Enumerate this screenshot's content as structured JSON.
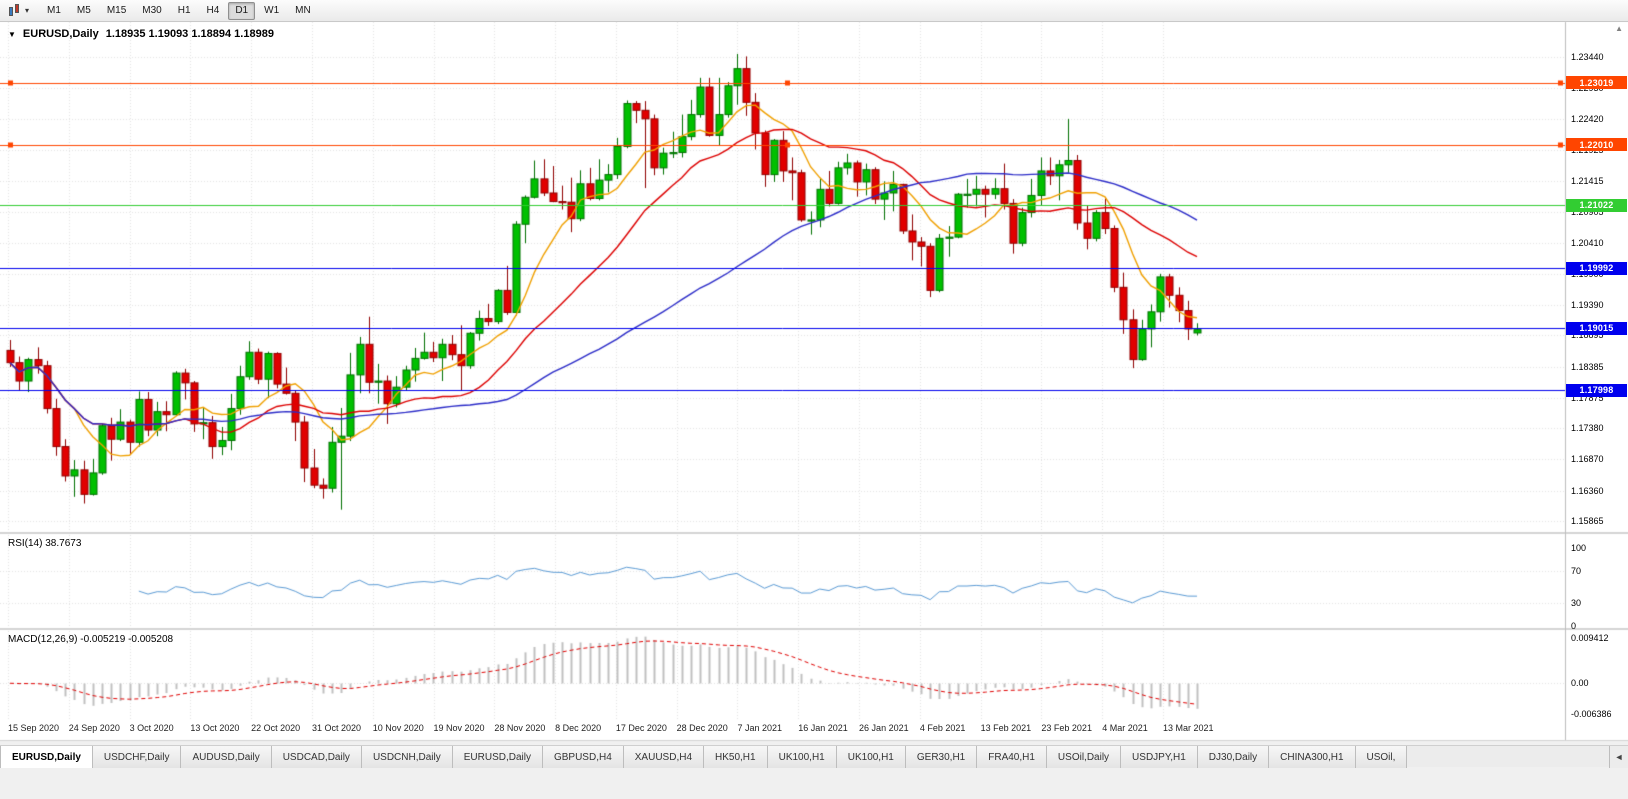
{
  "toolbar": {
    "timeframes": [
      "M1",
      "M5",
      "M15",
      "M30",
      "H1",
      "H4",
      "D1",
      "W1",
      "MN"
    ],
    "active_timeframe": "D1"
  },
  "header": {
    "collapse_icon": "▼",
    "symbol": "EURUSD,Daily",
    "ohlc": "1.18935 1.19093 1.18894 1.18989"
  },
  "rsi_pane": {
    "label": "RSI(14) 38.7673",
    "axis_labels": [
      "100",
      "70",
      "30",
      "0"
    ]
  },
  "macd_pane": {
    "label": "MACD(12,26,9) -0.005219 -0.005208",
    "axis_labels": [
      "0.009412",
      "0.00",
      "-0.006386"
    ]
  },
  "axis_scroll_icon": "▲",
  "tabs": {
    "active_index": 0,
    "scroll_icon": "◄",
    "items": [
      "EURUSD,Daily",
      "USDCHF,Daily",
      "AUDUSD,Daily",
      "USDCAD,Daily",
      "USDCNH,Daily",
      "EURUSD,Daily",
      "GBPUSD,H4",
      "XAUUSD,H4",
      "HK50,H1",
      "UK100,H1",
      "UK100,H1",
      "GER30,H1",
      "FRA40,H1",
      "USOil,Daily",
      "USDJPY,H1",
      "DJ30,Daily",
      "CHINA300,H1",
      "USOil,"
    ]
  },
  "chart_data": {
    "type": "candlestick",
    "symbol": "EURUSD",
    "timeframe": "Daily",
    "price_axis_labels": [
      "1.23440",
      "1.22930",
      "1.22420",
      "1.21925",
      "1.21415",
      "1.20905",
      "1.20410",
      "1.19900",
      "1.19390",
      "1.18895",
      "1.18385",
      "1.17875",
      "1.17380",
      "1.16870",
      "1.16360",
      "1.15865"
    ],
    "x_dates": [
      "15 Sep 2020",
      "24 Sep 2020",
      "3 Oct 2020",
      "13 Oct 2020",
      "22 Oct 2020",
      "31 Oct 2020",
      "10 Nov 2020",
      "19 Nov 2020",
      "28 Nov 2020",
      "8 Dec 2020",
      "17 Dec 2020",
      "28 Dec 2020",
      "7 Jan 2021",
      "16 Jan 2021",
      "26 Jan 2021",
      "4 Feb 2021",
      "13 Feb 2021",
      "23 Feb 2021",
      "4 Mar 2021",
      "13 Mar 2021"
    ],
    "levels": [
      {
        "label": "1.23019",
        "price": 1.23019,
        "color": "#ff4500",
        "selected": true
      },
      {
        "label": "1.22010",
        "price": 1.2201,
        "color": "#ff4500",
        "selected": true
      },
      {
        "label": "1.21022",
        "price": 1.21022,
        "color": "#32cd32",
        "selected": false
      },
      {
        "label": "1.19992",
        "price": 1.19992,
        "color": "#0000ee",
        "selected": false
      },
      {
        "label": "1.19015",
        "price": 1.19015,
        "color": "#0000ee",
        "selected": false
      },
      {
        "label": "1.17998",
        "price": 1.17998,
        "color": "#0000ee",
        "selected": false
      }
    ],
    "colors": {
      "bull": "#00c000",
      "bear": "#e10000",
      "bull_border": "#007000",
      "bear_border": "#900000"
    },
    "indicators": {
      "moving_averages": [
        {
          "type": "sma",
          "period": 8,
          "color": "#f0a000"
        },
        {
          "type": "sma",
          "period": 20,
          "color": "#dd0000"
        },
        {
          "type": "sma",
          "period": 50,
          "color": "#2b2bc8"
        }
      ],
      "rsi": {
        "period": 14,
        "current": 38.7673,
        "scale_max": 100,
        "scale_min": 0,
        "levels": [
          70,
          30
        ],
        "color": "#5b9bd5"
      },
      "macd": {
        "fast": 12,
        "slow": 26,
        "signal_period": 9,
        "current_macd": -0.005219,
        "current_signal": -0.005208,
        "axis_max": 0.009412,
        "axis_min": -0.006386,
        "hist_color": "#c0c0c0",
        "signal_color": "#e00000"
      }
    },
    "candles": [
      [
        1.1865,
        1.1882,
        1.1838,
        1.1845
      ],
      [
        1.1845,
        1.1855,
        1.18,
        1.1815
      ],
      [
        1.1815,
        1.1853,
        1.1797,
        1.185
      ],
      [
        1.185,
        1.187,
        1.1827,
        1.184
      ],
      [
        1.184,
        1.1848,
        1.1762,
        1.177
      ],
      [
        1.177,
        1.1786,
        1.1693,
        1.1708
      ],
      [
        1.1708,
        1.172,
        1.1651,
        1.166
      ],
      [
        1.166,
        1.1686,
        1.1626,
        1.167
      ],
      [
        1.167,
        1.1685,
        1.1615,
        1.163
      ],
      [
        1.163,
        1.1688,
        1.1628,
        1.1665
      ],
      [
        1.1665,
        1.1745,
        1.1662,
        1.1742
      ],
      [
        1.1742,
        1.1755,
        1.1685,
        1.172
      ],
      [
        1.172,
        1.1769,
        1.1717,
        1.1748
      ],
      [
        1.1748,
        1.1752,
        1.1695,
        1.1715
      ],
      [
        1.1715,
        1.1798,
        1.1708,
        1.1785
      ],
      [
        1.1785,
        1.1797,
        1.1725,
        1.1735
      ],
      [
        1.1735,
        1.1781,
        1.1725,
        1.1765
      ],
      [
        1.1765,
        1.1782,
        1.1733,
        1.176
      ],
      [
        1.176,
        1.1831,
        1.1758,
        1.1828
      ],
      [
        1.1828,
        1.1835,
        1.1785,
        1.1812
      ],
      [
        1.1812,
        1.1815,
        1.1732,
        1.1745
      ],
      [
        1.1745,
        1.1772,
        1.172,
        1.1747
      ],
      [
        1.1747,
        1.1758,
        1.1688,
        1.1708
      ],
      [
        1.1708,
        1.174,
        1.1694,
        1.1718
      ],
      [
        1.1718,
        1.1794,
        1.1702,
        1.177
      ],
      [
        1.177,
        1.184,
        1.176,
        1.1822
      ],
      [
        1.1822,
        1.188,
        1.1817,
        1.1862
      ],
      [
        1.1862,
        1.1868,
        1.181,
        1.1818
      ],
      [
        1.1818,
        1.1863,
        1.1787,
        1.186
      ],
      [
        1.186,
        1.1862,
        1.1803,
        1.181
      ],
      [
        1.181,
        1.1837,
        1.1793,
        1.1795
      ],
      [
        1.1795,
        1.18,
        1.1717,
        1.1748
      ],
      [
        1.1748,
        1.1758,
        1.165,
        1.1673
      ],
      [
        1.1673,
        1.1704,
        1.164,
        1.1645
      ],
      [
        1.1645,
        1.1656,
        1.1623,
        1.164
      ],
      [
        1.164,
        1.174,
        1.1633,
        1.1715
      ],
      [
        1.1715,
        1.1771,
        1.1605,
        1.1725
      ],
      [
        1.1725,
        1.1861,
        1.1717,
        1.1825
      ],
      [
        1.1825,
        1.1887,
        1.1795,
        1.1875
      ],
      [
        1.1875,
        1.192,
        1.1795,
        1.1813
      ],
      [
        1.1813,
        1.1843,
        1.1778,
        1.1815
      ],
      [
        1.1815,
        1.1824,
        1.1745,
        1.1778
      ],
      [
        1.1778,
        1.1823,
        1.1772,
        1.1805
      ],
      [
        1.1805,
        1.184,
        1.1799,
        1.1833
      ],
      [
        1.1833,
        1.1869,
        1.1814,
        1.1852
      ],
      [
        1.1852,
        1.1894,
        1.185,
        1.1862
      ],
      [
        1.1862,
        1.1879,
        1.1846,
        1.1853
      ],
      [
        1.1853,
        1.1884,
        1.1815,
        1.1875
      ],
      [
        1.1875,
        1.189,
        1.1849,
        1.1858
      ],
      [
        1.1858,
        1.1906,
        1.18,
        1.184
      ],
      [
        1.184,
        1.1895,
        1.1835,
        1.1893
      ],
      [
        1.1893,
        1.193,
        1.1881,
        1.1917
      ],
      [
        1.1917,
        1.1941,
        1.1905,
        1.1912
      ],
      [
        1.1912,
        1.1965,
        1.1908,
        1.1963
      ],
      [
        1.1963,
        1.2003,
        1.1923,
        1.1927
      ],
      [
        1.1927,
        1.2076,
        1.1922,
        1.2071
      ],
      [
        1.2071,
        1.2118,
        1.204,
        1.2115
      ],
      [
        1.2115,
        1.2175,
        1.2113,
        1.2145
      ],
      [
        1.2145,
        1.2177,
        1.2117,
        1.2122
      ],
      [
        1.2122,
        1.2166,
        1.2107,
        1.2108
      ],
      [
        1.2108,
        1.2134,
        1.2095,
        1.2107
      ],
      [
        1.2107,
        1.2147,
        1.2058,
        1.208
      ],
      [
        1.208,
        1.2159,
        1.2076,
        1.2137
      ],
      [
        1.2137,
        1.2163,
        1.211,
        1.2113
      ],
      [
        1.2113,
        1.2177,
        1.211,
        1.2143
      ],
      [
        1.2143,
        1.2169,
        1.2123,
        1.2152
      ],
      [
        1.2152,
        1.2212,
        1.2145,
        1.2198
      ],
      [
        1.2198,
        1.2273,
        1.2195,
        1.2268
      ],
      [
        1.2268,
        1.2272,
        1.2236,
        1.2257
      ],
      [
        1.2257,
        1.2272,
        1.213,
        1.2243
      ],
      [
        1.2243,
        1.225,
        1.2151,
        1.2163
      ],
      [
        1.2163,
        1.2196,
        1.2152,
        1.2187
      ],
      [
        1.2187,
        1.2222,
        1.2179,
        1.2188
      ],
      [
        1.2188,
        1.225,
        1.218,
        1.2214
      ],
      [
        1.2214,
        1.2274,
        1.2208,
        1.225
      ],
      [
        1.225,
        1.231,
        1.2245,
        1.2295
      ],
      [
        1.2295,
        1.231,
        1.2214,
        1.2216
      ],
      [
        1.2216,
        1.231,
        1.22,
        1.225
      ],
      [
        1.225,
        1.2303,
        1.2245,
        1.2297
      ],
      [
        1.2297,
        1.2349,
        1.2266,
        1.2325
      ],
      [
        1.2325,
        1.2345,
        1.2248,
        1.227
      ],
      [
        1.227,
        1.2285,
        1.2193,
        1.222
      ],
      [
        1.222,
        1.2224,
        1.2132,
        1.2152
      ],
      [
        1.2152,
        1.221,
        1.214,
        1.2208
      ],
      [
        1.2208,
        1.2223,
        1.214,
        1.2158
      ],
      [
        1.2158,
        1.218,
        1.211,
        1.2155
      ],
      [
        1.2155,
        1.216,
        1.2075,
        1.2078
      ],
      [
        1.2078,
        1.2092,
        1.2054,
        1.2078
      ],
      [
        1.2078,
        1.2145,
        1.2066,
        1.2128
      ],
      [
        1.2128,
        1.2158,
        1.21,
        1.2105
      ],
      [
        1.2105,
        1.2173,
        1.2103,
        1.2163
      ],
      [
        1.2163,
        1.2186,
        1.2152,
        1.2171
      ],
      [
        1.2171,
        1.2175,
        1.2116,
        1.214
      ],
      [
        1.214,
        1.217,
        1.2118,
        1.216
      ],
      [
        1.216,
        1.2164,
        1.2104,
        1.2112
      ],
      [
        1.2112,
        1.2141,
        1.2078,
        1.2122
      ],
      [
        1.2122,
        1.2158,
        1.2092,
        1.2136
      ],
      [
        1.2136,
        1.2137,
        1.2055,
        1.206
      ],
      [
        1.206,
        1.2087,
        1.2012,
        1.2042
      ],
      [
        1.2042,
        1.205,
        1.2002,
        1.2035
      ],
      [
        1.2035,
        1.204,
        1.1952,
        1.1963
      ],
      [
        1.1963,
        1.2055,
        1.196,
        1.2048
      ],
      [
        1.2048,
        1.2068,
        1.2018,
        1.205
      ],
      [
        1.205,
        1.2122,
        1.2048,
        1.212
      ],
      [
        1.212,
        1.2145,
        1.2098,
        1.212
      ],
      [
        1.212,
        1.215,
        1.21,
        1.2128
      ],
      [
        1.2128,
        1.2134,
        1.2082,
        1.212
      ],
      [
        1.212,
        1.2146,
        1.2112,
        1.2129
      ],
      [
        1.2129,
        1.217,
        1.2095,
        1.2105
      ],
      [
        1.2105,
        1.2112,
        1.2023,
        1.204
      ],
      [
        1.204,
        1.2098,
        1.2035,
        1.209
      ],
      [
        1.209,
        1.2145,
        1.2082,
        1.2118
      ],
      [
        1.2118,
        1.218,
        1.2102,
        1.2158
      ],
      [
        1.2158,
        1.218,
        1.2135,
        1.215
      ],
      [
        1.215,
        1.2176,
        1.211,
        1.2168
      ],
      [
        1.2168,
        1.2243,
        1.2155,
        1.2175
      ],
      [
        1.2175,
        1.2184,
        1.2062,
        1.2073
      ],
      [
        1.2073,
        1.2101,
        1.203,
        1.2048
      ],
      [
        1.2048,
        1.2094,
        1.2043,
        1.209
      ],
      [
        1.209,
        1.2113,
        1.2055,
        1.2064
      ],
      [
        1.2064,
        1.2069,
        1.196,
        1.1968
      ],
      [
        1.1968,
        1.1992,
        1.1892,
        1.1915
      ],
      [
        1.1915,
        1.1932,
        1.1836,
        1.185
      ],
      [
        1.185,
        1.1915,
        1.1848,
        1.19
      ],
      [
        1.19,
        1.194,
        1.187,
        1.1928
      ],
      [
        1.1928,
        1.199,
        1.1912,
        1.1985
      ],
      [
        1.1985,
        1.199,
        1.1935,
        1.1955
      ],
      [
        1.1955,
        1.1968,
        1.1911,
        1.193
      ],
      [
        1.193,
        1.1946,
        1.1882,
        1.19
      ],
      [
        1.18935,
        1.19093,
        1.18894,
        1.18989
      ]
    ]
  }
}
